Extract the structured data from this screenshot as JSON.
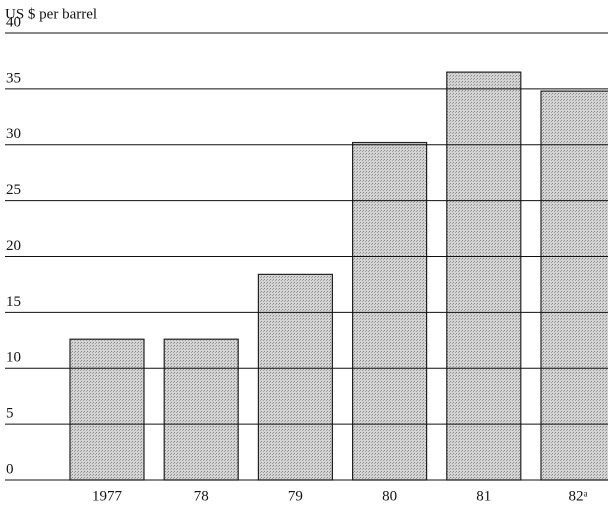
{
  "chart_data": {
    "type": "bar",
    "y_label": "US $ per barrel",
    "categories": [
      "1977",
      "78",
      "79",
      "80",
      "81",
      "82ᵃ"
    ],
    "values": [
      12.6,
      12.6,
      18.4,
      30.2,
      36.5,
      34.8
    ],
    "color": "#c8c8c8",
    "ylim": [
      0,
      40
    ],
    "yticks": [
      0,
      5,
      10,
      15,
      20,
      25,
      30,
      35,
      40
    ],
    "grid": true
  }
}
